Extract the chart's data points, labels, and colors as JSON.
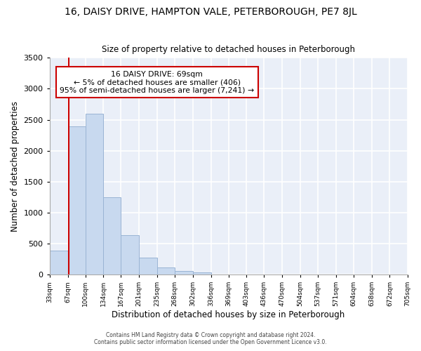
{
  "title1": "16, DAISY DRIVE, HAMPTON VALE, PETERBOROUGH, PE7 8JL",
  "title2": "Size of property relative to detached houses in Peterborough",
  "xlabel": "Distribution of detached houses by size in Peterborough",
  "ylabel": "Number of detached properties",
  "bar_values": [
    390,
    2390,
    2600,
    1250,
    640,
    270,
    110,
    60,
    40,
    0,
    0,
    0,
    0,
    0,
    0,
    0,
    0,
    0,
    0,
    0
  ],
  "bin_edges": [
    33,
    67,
    100,
    134,
    167,
    201,
    235,
    268,
    302,
    336,
    369,
    403,
    436,
    470,
    504,
    537,
    571,
    604,
    638,
    672,
    705
  ],
  "tick_labels": [
    "33sqm",
    "67sqm",
    "100sqm",
    "134sqm",
    "167sqm",
    "201sqm",
    "235sqm",
    "268sqm",
    "302sqm",
    "336sqm",
    "369sqm",
    "403sqm",
    "436sqm",
    "470sqm",
    "504sqm",
    "537sqm",
    "571sqm",
    "604sqm",
    "638sqm",
    "672sqm",
    "705sqm"
  ],
  "bar_color": "#c8d9ef",
  "bar_edge_color": "#9ab4d4",
  "background_color": "#eaeff8",
  "grid_color": "#ffffff",
  "red_line_x": 69,
  "red_line_color": "#cc0000",
  "annotation_box_text": "16 DAISY DRIVE: 69sqm\n← 5% of detached houses are smaller (406)\n95% of semi-detached houses are larger (7,241) →",
  "annotation_box_edge_color": "#cc0000",
  "ylim": [
    0,
    3500
  ],
  "yticks": [
    0,
    500,
    1000,
    1500,
    2000,
    2500,
    3000,
    3500
  ],
  "footer1": "Contains HM Land Registry data © Crown copyright and database right 2024.",
  "footer2": "Contains public sector information licensed under the Open Government Licence v3.0."
}
